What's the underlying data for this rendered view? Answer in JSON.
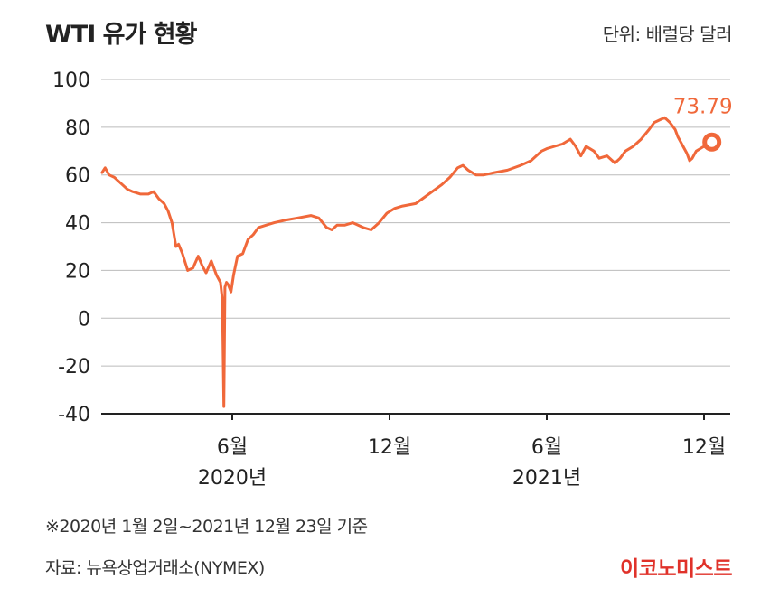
{
  "header": {
    "title": "WTI 유가 현황",
    "unit": "단위: 배럴당 달러"
  },
  "footer": {
    "note": "※2020년 1월 2일~2021년 12월 23일 기준",
    "source": "자료: 뉴욕상업거래소(NYMEX)",
    "brand": "이코노미스트"
  },
  "colors": {
    "line": "#f0683a",
    "grid": "#bbbbbb",
    "axis": "#222222",
    "brand": "#e0322a"
  },
  "chart_data": {
    "type": "line",
    "title": "WTI 유가 현황",
    "xlabel": "",
    "ylabel": "단위: 배럴당 달러",
    "ylim": [
      -40,
      100
    ],
    "yticks": [
      100,
      80,
      60,
      40,
      20,
      0,
      -20,
      -40
    ],
    "ytick_labels": [
      "100",
      "80",
      "60",
      "40",
      "20",
      "0",
      "-20",
      "-40"
    ],
    "xlim": [
      0,
      24
    ],
    "grid": true,
    "x_ticks": [
      {
        "x": 5.0,
        "label": "6월",
        "sublabel": "2020년"
      },
      {
        "x": 11.0,
        "label": "12월",
        "sublabel": ""
      },
      {
        "x": 17.0,
        "label": "6월",
        "sublabel": "2021년"
      },
      {
        "x": 23.0,
        "label": "12월",
        "sublabel": ""
      }
    ],
    "last_value_label": "73.79",
    "series": [
      {
        "name": "WTI",
        "x": [
          0.03,
          0.15,
          0.3,
          0.5,
          0.8,
          1.0,
          1.2,
          1.5,
          1.8,
          2.0,
          2.2,
          2.4,
          2.55,
          2.7,
          2.85,
          2.95,
          3.1,
          3.3,
          3.5,
          3.7,
          3.85,
          4.0,
          4.2,
          4.4,
          4.55,
          4.62,
          4.68,
          4.72,
          4.78,
          4.85,
          4.95,
          5.05,
          5.2,
          5.4,
          5.6,
          5.8,
          6.0,
          6.3,
          6.6,
          7.0,
          7.5,
          8.0,
          8.3,
          8.6,
          8.8,
          9.0,
          9.3,
          9.6,
          10.0,
          10.3,
          10.6,
          10.9,
          11.2,
          11.5,
          12.0,
          12.5,
          13.0,
          13.3,
          13.6,
          13.8,
          14.0,
          14.3,
          14.6,
          15.0,
          15.5,
          16.0,
          16.4,
          16.8,
          17.0,
          17.3,
          17.6,
          17.9,
          18.1,
          18.3,
          18.5,
          18.8,
          19.0,
          19.3,
          19.6,
          19.8,
          20.0,
          20.3,
          20.6,
          20.9,
          21.1,
          21.3,
          21.5,
          21.7,
          21.9,
          22.0,
          22.2,
          22.35,
          22.45,
          22.55,
          22.7,
          22.85,
          23.0,
          23.15,
          23.3
        ],
        "values": [
          61,
          63,
          60,
          59,
          56,
          54,
          53,
          52,
          52,
          53,
          50,
          48,
          45,
          40,
          30,
          31,
          27,
          20,
          21,
          26,
          22,
          19,
          24,
          18,
          15,
          8,
          -37,
          13,
          15,
          14,
          11,
          18,
          26,
          27,
          33,
          35,
          38,
          39,
          40,
          41,
          42,
          43,
          42,
          38,
          37,
          39,
          39,
          40,
          38,
          37,
          40,
          44,
          46,
          47,
          48,
          52,
          56,
          59,
          63,
          64,
          62,
          60,
          60,
          61,
          62,
          64,
          66,
          70,
          71,
          72,
          73,
          75,
          72,
          68,
          72,
          70,
          67,
          68,
          65,
          67,
          70,
          72,
          75,
          79,
          82,
          83,
          84,
          82,
          79,
          76,
          72,
          69,
          66,
          67,
          70,
          71,
          72,
          71,
          73.79
        ]
      }
    ]
  }
}
